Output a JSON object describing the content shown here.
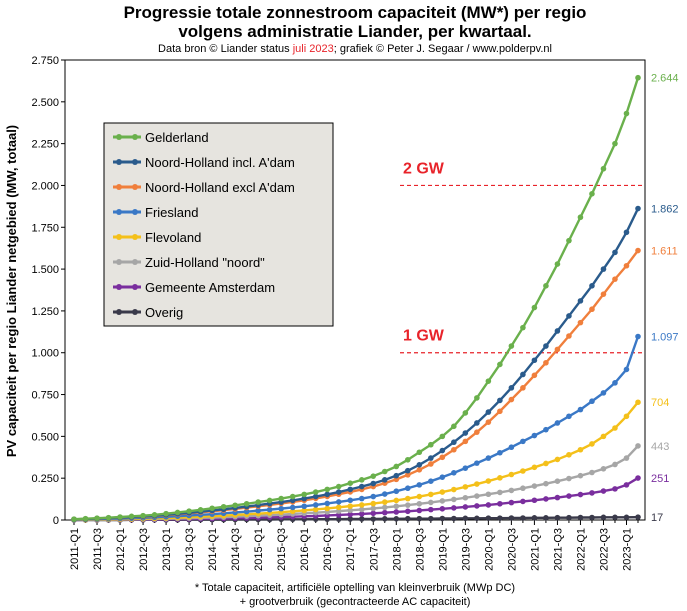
{
  "title_line1": "Progressie totale zonnestroom capaciteit (MW*) per regio",
  "title_line2": "volgens administratie  Liander, per kwartaal.",
  "subtitle_pre": "Data bron © Liander status ",
  "subtitle_date": "juli 2023",
  "subtitle_post": "; grafiek © Peter J. Segaar / www.polderpv.nl",
  "footnote_line1": "* Totale capaciteit, artificiële optelling van kleinverbruik (MWp DC)",
  "footnote_line2": "+ grootverbruik (gecontracteerde AC capaciteit)",
  "colors": {
    "subtitle_date": "#e8232a",
    "gw_reference": "#e8232a",
    "plot_background": "#ffffff",
    "legend_background": "#e6e4df"
  },
  "chart_data": {
    "type": "line",
    "ylabel": "PV capaciteit per regio Liander netgebied (MW, totaal)",
    "xlabel": "",
    "ylim": [
      0,
      2.75
    ],
    "yticks": [
      "0",
      "0.250",
      "0.500",
      "0.750",
      "1.000",
      "1.250",
      "1.500",
      "1.750",
      "2.000",
      "2.250",
      "2.500",
      "2.750"
    ],
    "grid": false,
    "legend_position": "top-left",
    "x": [
      "2011-Q1",
      "2011-Q2",
      "2011-Q3",
      "2011-Q4",
      "2012-Q1",
      "2012-Q2",
      "2012-Q3",
      "2012-Q4",
      "2013-Q1",
      "2013-Q2",
      "2013-Q3",
      "2013-Q4",
      "2014-Q1",
      "2014-Q2",
      "2014-Q3",
      "2014-Q4",
      "2015-Q1",
      "2015-Q2",
      "2015-Q3",
      "2015-Q4",
      "2016-Q1",
      "2016-Q2",
      "2016-Q3",
      "2016-Q4",
      "2017-Q1",
      "2017-Q2",
      "2017-Q3",
      "2017-Q4",
      "2018-Q1",
      "2018-Q2",
      "2018-Q3",
      "2018-Q4",
      "2019-Q1",
      "2019-Q2",
      "2019-Q3",
      "2019-Q4",
      "2020-Q1",
      "2020-Q2",
      "2020-Q3",
      "2020-Q4",
      "2021-Q1",
      "2021-Q2",
      "2021-Q3",
      "2021-Q4",
      "2022-Q1",
      "2022-Q2",
      "2022-Q3",
      "2022-Q4",
      "2023-Q1",
      "2023-Q2"
    ],
    "xtick_labels": [
      "2011-Q1",
      "2011-Q3",
      "2012-Q1",
      "2012-Q3",
      "2013-Q1",
      "2013-Q3",
      "2014-Q1",
      "2014-Q3",
      "2015-Q1",
      "2015-Q3",
      "2016-Q1",
      "2016-Q3",
      "2017-Q1",
      "2017-Q3",
      "2018-Q1",
      "2018-Q3",
      "2019-Q1",
      "2019-Q3",
      "2020-Q1",
      "2020-Q3",
      "2021-Q1",
      "2021-Q3",
      "2022-Q1",
      "2022-Q3",
      "2023-Q1"
    ],
    "reference_lines": [
      {
        "label": "2 GW",
        "value": 2.0
      },
      {
        "label": "1 GW",
        "value": 1.0
      }
    ],
    "series": [
      {
        "name": "Gelderland",
        "color": "#6ab04c",
        "end_label": "2.644",
        "values": [
          0.005,
          0.008,
          0.011,
          0.014,
          0.018,
          0.022,
          0.026,
          0.031,
          0.038,
          0.045,
          0.053,
          0.061,
          0.07,
          0.079,
          0.088,
          0.097,
          0.107,
          0.117,
          0.128,
          0.14,
          0.153,
          0.167,
          0.183,
          0.2,
          0.22,
          0.24,
          0.262,
          0.29,
          0.32,
          0.36,
          0.405,
          0.45,
          0.5,
          0.56,
          0.64,
          0.73,
          0.83,
          0.93,
          1.04,
          1.15,
          1.27,
          1.4,
          1.53,
          1.67,
          1.81,
          1.95,
          2.1,
          2.25,
          2.43,
          2.644
        ]
      },
      {
        "name": "Noord-Holland incl. A'dam",
        "color": "#2a5b8c",
        "end_label": "1.862",
        "values": [
          0.004,
          0.006,
          0.009,
          0.012,
          0.015,
          0.018,
          0.022,
          0.026,
          0.031,
          0.037,
          0.043,
          0.05,
          0.057,
          0.064,
          0.072,
          0.08,
          0.089,
          0.098,
          0.107,
          0.117,
          0.128,
          0.14,
          0.153,
          0.167,
          0.183,
          0.2,
          0.218,
          0.24,
          0.265,
          0.295,
          0.33,
          0.37,
          0.415,
          0.465,
          0.52,
          0.58,
          0.645,
          0.715,
          0.79,
          0.87,
          0.955,
          1.04,
          1.13,
          1.22,
          1.31,
          1.4,
          1.5,
          1.6,
          1.72,
          1.862
        ]
      },
      {
        "name": "Noord-Holland excl A'dam",
        "color": "#f07f3c",
        "end_label": "1.611",
        "values": [
          0.004,
          0.006,
          0.008,
          0.011,
          0.014,
          0.017,
          0.02,
          0.024,
          0.029,
          0.034,
          0.04,
          0.046,
          0.052,
          0.059,
          0.066,
          0.074,
          0.082,
          0.09,
          0.099,
          0.108,
          0.118,
          0.129,
          0.141,
          0.154,
          0.168,
          0.183,
          0.2,
          0.22,
          0.243,
          0.27,
          0.3,
          0.335,
          0.375,
          0.42,
          0.47,
          0.525,
          0.585,
          0.65,
          0.72,
          0.79,
          0.865,
          0.94,
          1.02,
          1.1,
          1.18,
          1.26,
          1.35,
          1.44,
          1.52,
          1.611
        ]
      },
      {
        "name": "Friesland",
        "color": "#3a78c6",
        "end_label": "1.097",
        "values": [
          0.002,
          0.004,
          0.005,
          0.007,
          0.009,
          0.011,
          0.013,
          0.016,
          0.019,
          0.023,
          0.027,
          0.031,
          0.035,
          0.04,
          0.045,
          0.05,
          0.056,
          0.062,
          0.068,
          0.075,
          0.082,
          0.09,
          0.099,
          0.108,
          0.118,
          0.128,
          0.14,
          0.155,
          0.172,
          0.19,
          0.21,
          0.232,
          0.256,
          0.282,
          0.31,
          0.34,
          0.37,
          0.402,
          0.435,
          0.47,
          0.505,
          0.54,
          0.58,
          0.62,
          0.66,
          0.71,
          0.76,
          0.82,
          0.9,
          1.097
        ]
      },
      {
        "name": "Flevoland",
        "color": "#f4c01a",
        "end_label": "704",
        "values": [
          0.001,
          0.002,
          0.003,
          0.004,
          0.005,
          0.006,
          0.008,
          0.01,
          0.012,
          0.014,
          0.017,
          0.02,
          0.023,
          0.026,
          0.03,
          0.034,
          0.038,
          0.042,
          0.047,
          0.052,
          0.057,
          0.063,
          0.069,
          0.076,
          0.083,
          0.09,
          0.098,
          0.107,
          0.117,
          0.128,
          0.14,
          0.153,
          0.167,
          0.182,
          0.198,
          0.215,
          0.233,
          0.252,
          0.272,
          0.293,
          0.315,
          0.338,
          0.362,
          0.39,
          0.42,
          0.455,
          0.5,
          0.55,
          0.62,
          0.704
        ]
      },
      {
        "name": "Zuid-Holland \"noord\"",
        "color": "#a6a6a6",
        "end_label": "443",
        "values": [
          0.001,
          0.001,
          0.002,
          0.002,
          0.003,
          0.004,
          0.005,
          0.006,
          0.007,
          0.009,
          0.011,
          0.013,
          0.015,
          0.017,
          0.02,
          0.023,
          0.026,
          0.029,
          0.032,
          0.036,
          0.04,
          0.044,
          0.048,
          0.053,
          0.058,
          0.063,
          0.069,
          0.075,
          0.082,
          0.089,
          0.097,
          0.105,
          0.114,
          0.123,
          0.133,
          0.143,
          0.154,
          0.165,
          0.177,
          0.19,
          0.203,
          0.217,
          0.232,
          0.248,
          0.265,
          0.284,
          0.306,
          0.332,
          0.37,
          0.443
        ]
      },
      {
        "name": "Gemeente Amsterdam",
        "color": "#7a2e9e",
        "end_label": "251",
        "values": [
          0.0,
          0.001,
          0.001,
          0.001,
          0.002,
          0.002,
          0.003,
          0.003,
          0.004,
          0.005,
          0.006,
          0.007,
          0.008,
          0.009,
          0.011,
          0.012,
          0.014,
          0.016,
          0.018,
          0.02,
          0.022,
          0.024,
          0.027,
          0.03,
          0.033,
          0.036,
          0.04,
          0.044,
          0.048,
          0.052,
          0.057,
          0.062,
          0.067,
          0.072,
          0.078,
          0.084,
          0.09,
          0.097,
          0.104,
          0.111,
          0.118,
          0.126,
          0.134,
          0.143,
          0.152,
          0.162,
          0.173,
          0.186,
          0.21,
          0.251
        ]
      },
      {
        "name": "Overig",
        "color": "#3a3a4a",
        "end_label": "17",
        "values": [
          0.0,
          0.0,
          0.0,
          0.0,
          0.0,
          0.001,
          0.001,
          0.001,
          0.001,
          0.001,
          0.002,
          0.002,
          0.002,
          0.002,
          0.003,
          0.003,
          0.003,
          0.003,
          0.004,
          0.004,
          0.004,
          0.005,
          0.005,
          0.005,
          0.006,
          0.006,
          0.006,
          0.007,
          0.007,
          0.008,
          0.008,
          0.008,
          0.009,
          0.009,
          0.01,
          0.01,
          0.011,
          0.011,
          0.012,
          0.012,
          0.013,
          0.013,
          0.014,
          0.014,
          0.015,
          0.015,
          0.016,
          0.016,
          0.016,
          0.017
        ]
      }
    ]
  }
}
